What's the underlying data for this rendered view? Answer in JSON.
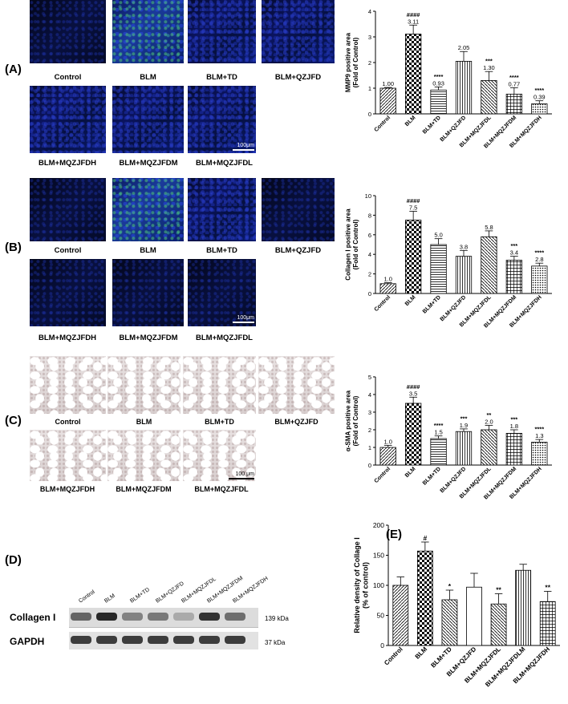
{
  "panels": {
    "A": {
      "label": "(A)",
      "row1": [
        "Control",
        "BLM",
        "BLM+TD",
        "BLM+QZJFD"
      ],
      "row2": [
        "BLM+MQZJFDH",
        "BLM+MQZJFDM",
        "BLM+MQZJFDL"
      ],
      "scale": "100μm"
    },
    "B": {
      "label": "(B)",
      "row1": [
        "Control",
        "BLM",
        "BLM+TD",
        "BLM+QZJFD"
      ],
      "row2": [
        "BLM+MQZJFDH",
        "BLM+MQZJFDM",
        "BLM+MQZJFDL"
      ],
      "scale": "100μm"
    },
    "C": {
      "label": "(C)",
      "row1": [
        "Control",
        "BLM",
        "BLM+TD",
        "BLM+QZJFD"
      ],
      "row2": [
        "BLM+MQZJFDH",
        "BLM+MQZJFDM",
        "BLM+MQZJFDL"
      ],
      "scale": "100 μm"
    },
    "D": {
      "label": "(D)",
      "lanes": [
        "Control",
        "BLM",
        "BLM+TD",
        "BLM+QZJFD",
        "BLM+MQZJFDL",
        "BLM+MQZJFDM",
        "BLM+MQZJFDH"
      ],
      "rows": [
        {
          "name": "Collagen I",
          "kda": "139 kDa"
        },
        {
          "name": "GAPDH",
          "kda": "37 kDa"
        }
      ]
    },
    "E": {
      "label": "(E)"
    }
  },
  "chart_data": [
    {
      "id": "A",
      "type": "bar",
      "ylabel": "MMP9 positive area\n(Fold of Control)",
      "ylim": [
        0,
        4
      ],
      "yticks": [
        0,
        1,
        2,
        3,
        4
      ],
      "categories": [
        "Control",
        "BLM",
        "BLM+TD",
        "BLM+QZJFD",
        "BLM+MQZJFDL",
        "BLM+MQZJFDM",
        "BLM+MQZJFDH"
      ],
      "values": [
        1.0,
        3.11,
        0.93,
        2.05,
        1.3,
        0.77,
        0.39
      ],
      "errors": [
        0.03,
        0.35,
        0.12,
        0.38,
        0.35,
        0.25,
        0.12
      ],
      "value_labels": [
        "1.00",
        "3.11",
        "0.93",
        "2.05",
        "1.30",
        "0.77",
        "0.39"
      ],
      "sig": [
        "",
        "####",
        "****",
        "",
        "***",
        "****",
        "****"
      ]
    },
    {
      "id": "B",
      "type": "bar",
      "ylabel": "Collagen I positive area\n(Fold of Control)",
      "ylim": [
        0,
        10
      ],
      "yticks": [
        0,
        2,
        4,
        6,
        8,
        10
      ],
      "categories": [
        "Control",
        "BLM",
        "BLM+TD",
        "BLM+QZJFD",
        "BLM+MQZJFDL",
        "BLM+MQZJFDM",
        "BLM+MQZJFDH"
      ],
      "values": [
        1.0,
        7.5,
        5.0,
        3.8,
        5.8,
        3.4,
        2.8
      ],
      "errors": [
        0.1,
        0.9,
        0.6,
        0.6,
        0.6,
        0.4,
        0.3
      ],
      "value_labels": [
        "1.0",
        "7.5",
        "5.0",
        "3.8",
        "5.8",
        "3.4",
        "2.8"
      ],
      "sig": [
        "",
        "####",
        "",
        "",
        "",
        "***",
        "****"
      ]
    },
    {
      "id": "C",
      "type": "bar",
      "ylabel": "α-SMA positive area\n(Fold of Control)",
      "ylim": [
        0,
        5
      ],
      "yticks": [
        0,
        1,
        2,
        3,
        4,
        5
      ],
      "categories": [
        "Control",
        "BLM",
        "BLM+TD",
        "BLM+QZJFD",
        "BLM+MQZJFDL",
        "BLM+MQZJFDM",
        "BLM+MQZJFDH"
      ],
      "values": [
        1.0,
        3.5,
        1.5,
        1.9,
        2.0,
        1.8,
        1.3
      ],
      "errors": [
        0.12,
        0.35,
        0.15,
        0.15,
        0.25,
        0.2,
        0.15
      ],
      "value_labels": [
        "1.0",
        "3.5",
        "1.5",
        "1.9",
        "2.0",
        "1.8",
        "1.3"
      ],
      "sig": [
        "",
        "####",
        "****",
        "***",
        "**",
        "***",
        "****"
      ]
    },
    {
      "id": "E",
      "type": "bar",
      "ylabel": "Relative density of Collage I\n(% of control)",
      "ylim": [
        0,
        200
      ],
      "yticks": [
        0,
        50,
        100,
        150,
        200
      ],
      "categories": [
        "Control",
        "BLM",
        "BLM+TD",
        "BLM+QZJFD",
        "BLM+MQZJFDL",
        "BLM+MQZJFDLM",
        "BLM+MQZJFDH"
      ],
      "values": [
        100,
        157,
        76,
        97,
        69,
        125,
        73
      ],
      "errors": [
        14,
        15,
        16,
        23,
        17,
        10,
        17
      ],
      "sig": [
        "",
        "#",
        "*",
        "",
        "**",
        "",
        "**"
      ]
    }
  ]
}
